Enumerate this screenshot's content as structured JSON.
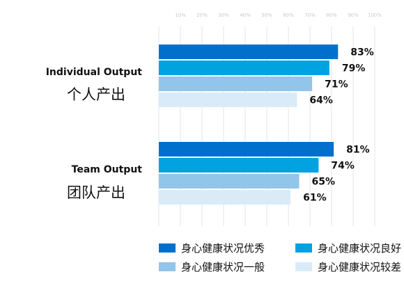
{
  "chart_data": {
    "type": "bar",
    "orientation": "horizontal",
    "categories": [
      {
        "en": "Individual Output",
        "zh": "个人产出"
      },
      {
        "en": "Team Output",
        "zh": "团队产出"
      }
    ],
    "series": [
      {
        "name": "身心健康状况优秀",
        "color": "#0070CC",
        "values": [
          83,
          81
        ]
      },
      {
        "name": "身心健康状况良好",
        "color": "#00A3E0",
        "values": [
          79,
          74
        ]
      },
      {
        "name": "身心健康状况一般",
        "color": "#91C5EA",
        "values": [
          71,
          65
        ]
      },
      {
        "name": "身心健康状况较差",
        "color": "#D9EBF7",
        "values": [
          64,
          61
        ]
      }
    ],
    "value_suffix": "%",
    "xlim": [
      0,
      100
    ],
    "x_ticks": [
      "10%",
      "20%",
      "30%",
      "40%",
      "50%",
      "60%",
      "70%",
      "80%",
      "90%",
      "100%"
    ],
    "grid": true,
    "legend_position": "bottom"
  }
}
